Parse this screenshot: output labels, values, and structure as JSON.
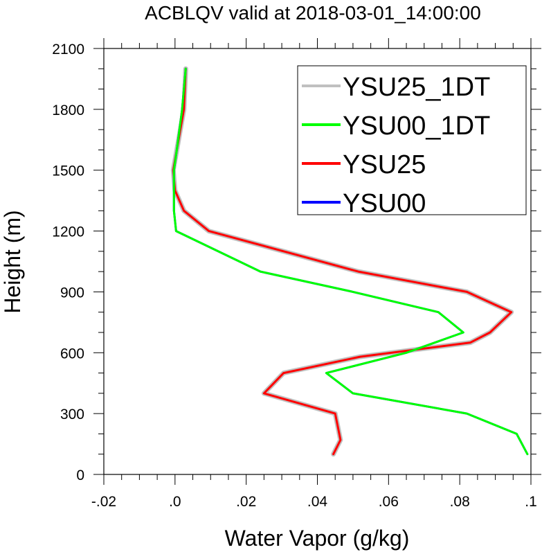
{
  "chart_data": {
    "type": "line",
    "title": "ACBLQV valid at 2018-03-01_14:00:00",
    "xlabel": "Water Vapor (g/kg)",
    "ylabel": "Height (m)",
    "xlim": [
      -0.02,
      0.1
    ],
    "ylim": [
      0,
      2100
    ],
    "xticks": [
      -0.02,
      0.0,
      0.02,
      0.04,
      0.06,
      0.08,
      0.1
    ],
    "xtick_labels": [
      "-.02",
      ".0",
      ".02",
      ".04",
      ".06",
      ".08",
      ".1"
    ],
    "yticks": [
      0,
      300,
      600,
      900,
      1200,
      1500,
      1800,
      2100
    ],
    "ytick_labels": [
      "0",
      "300",
      "600",
      "900",
      "1200",
      "1500",
      "1800",
      "2100"
    ],
    "grid": false,
    "legend_position": "top-right",
    "series": [
      {
        "name": "YSU25_1DT",
        "color": "#c0c0c0",
        "width": 7,
        "points": [
          [
            0.0445,
            100
          ],
          [
            0.0465,
            170
          ],
          [
            0.045,
            300
          ],
          [
            0.025,
            400
          ],
          [
            0.0305,
            500
          ],
          [
            0.052,
            580
          ],
          [
            0.083,
            650
          ],
          [
            0.0885,
            700
          ],
          [
            0.0945,
            800
          ],
          [
            0.082,
            900
          ],
          [
            0.0515,
            1000
          ],
          [
            0.0095,
            1200
          ],
          [
            0.0025,
            1300
          ],
          [
            0.0,
            1400
          ],
          [
            -0.0005,
            1500
          ],
          [
            0.001,
            1650
          ],
          [
            0.0025,
            1800
          ],
          [
            0.003,
            2000
          ]
        ]
      },
      {
        "name": "YSU00_1DT",
        "color": "#00ff00",
        "width": 3,
        "points": [
          [
            0.099,
            100
          ],
          [
            0.096,
            200
          ],
          [
            0.082,
            300
          ],
          [
            0.05,
            400
          ],
          [
            0.0425,
            500
          ],
          [
            0.065,
            600
          ],
          [
            0.081,
            700
          ],
          [
            0.074,
            800
          ],
          [
            0.05,
            900
          ],
          [
            0.024,
            1000
          ],
          [
            0.0003,
            1200
          ],
          [
            -0.0003,
            1300
          ],
          [
            -0.0003,
            1400
          ],
          [
            -0.0003,
            1500
          ],
          [
            0.0005,
            1600
          ],
          [
            0.002,
            1800
          ],
          [
            0.003,
            2000
          ]
        ]
      },
      {
        "name": "YSU25",
        "color": "#ff0000",
        "width": 3,
        "points": [
          [
            0.0445,
            100
          ],
          [
            0.0465,
            170
          ],
          [
            0.045,
            300
          ],
          [
            0.025,
            400
          ],
          [
            0.0305,
            500
          ],
          [
            0.052,
            580
          ],
          [
            0.083,
            650
          ],
          [
            0.0885,
            700
          ],
          [
            0.0945,
            800
          ],
          [
            0.082,
            900
          ],
          [
            0.0515,
            1000
          ],
          [
            0.0095,
            1200
          ],
          [
            0.0025,
            1300
          ],
          [
            0.0,
            1400
          ],
          [
            -0.0005,
            1500
          ],
          [
            0.001,
            1650
          ],
          [
            0.0025,
            1800
          ],
          [
            0.003,
            2000
          ]
        ]
      },
      {
        "name": "YSU00",
        "color": "#0000ff",
        "width": 3,
        "points": [
          [
            0.099,
            100
          ],
          [
            0.096,
            200
          ],
          [
            0.082,
            300
          ],
          [
            0.05,
            400
          ],
          [
            0.0425,
            500
          ],
          [
            0.065,
            600
          ],
          [
            0.081,
            700
          ],
          [
            0.074,
            800
          ],
          [
            0.05,
            900
          ],
          [
            0.024,
            1000
          ],
          [
            0.0003,
            1200
          ],
          [
            -0.0003,
            1300
          ],
          [
            -0.0003,
            1400
          ],
          [
            -0.0003,
            1500
          ],
          [
            0.0005,
            1600
          ],
          [
            0.002,
            1800
          ],
          [
            0.003,
            2000
          ]
        ]
      }
    ],
    "draw_order": [
      "YSU25_1DT",
      "YSU25",
      "YSU00",
      "YSU00_1DT"
    ]
  }
}
